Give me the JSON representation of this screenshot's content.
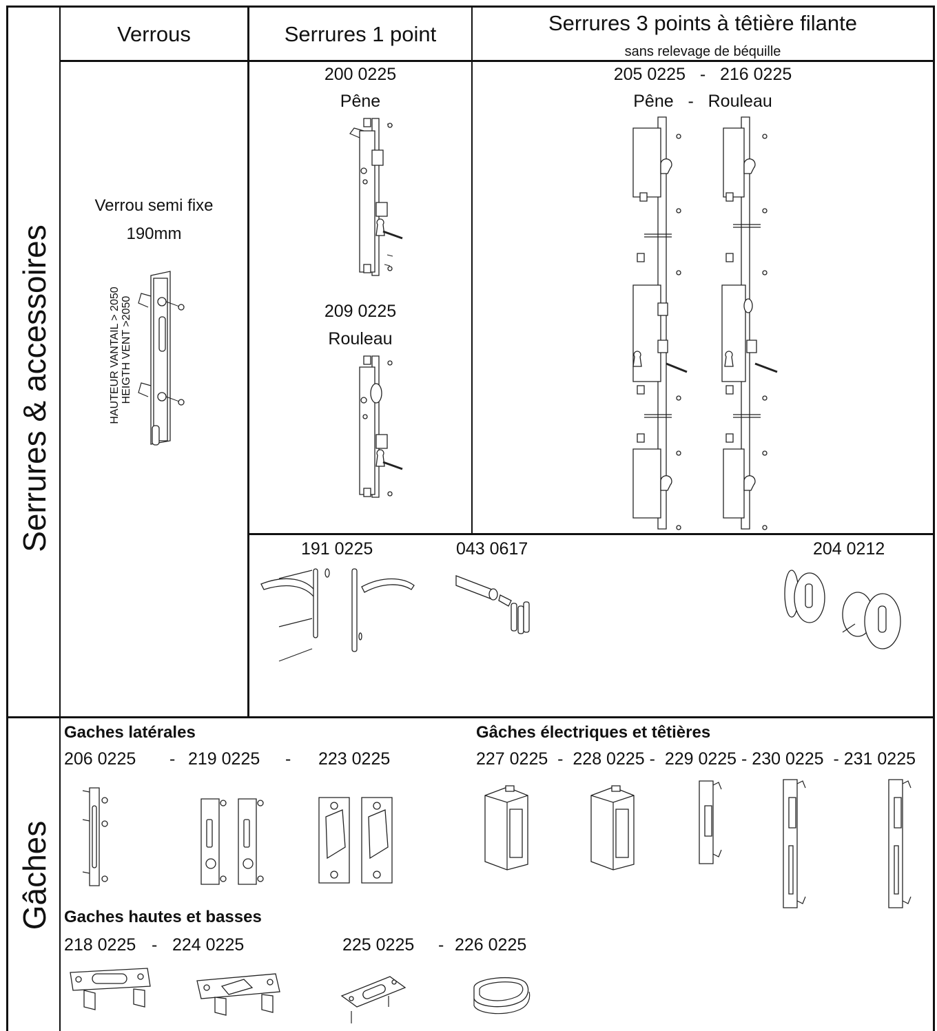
{
  "sections": {
    "serrures": "Serrures & accessoires",
    "gaches": "Gâches"
  },
  "columns": {
    "verrous": "Verrous",
    "serrures_1pt": "Serrures 1 point",
    "serrures_3pt": "Serrures 3 points à têtière filante",
    "serrures_3pt_sub": "sans relevage de béquille"
  },
  "verrou": {
    "label_line1": "Verrou semi fixe",
    "label_line2": "190mm",
    "rot_text1": "HAUTEUR VANTAIL > 2050",
    "rot_text2": "HEIGTH VENT >2050"
  },
  "one_point": {
    "ref1": "200 0225",
    "name1": "Pêne",
    "ref2": "209 0225",
    "name2": "Rouleau"
  },
  "three_point": {
    "refs": "205 0225   -   216 0225",
    "names": "Pêne   -   Rouleau"
  },
  "accessories": {
    "ref_handles": "191 0225",
    "ref_cylinder": "043 0617",
    "ref_rosettes": "204 0212"
  },
  "gaches": {
    "laterales_title": "Gaches latérales",
    "lat_ref1": "206 0225",
    "lat_sep1": "-",
    "lat_ref2": "219 0225",
    "lat_sep2": "-",
    "lat_ref3": "223 0225",
    "electric_title": "Gâches électriques et têtières",
    "electric_refs": "227 0225  -  228 0225 -  229 0225 - 230 0225  - 231 0225",
    "hautes_title": "Gaches hautes et basses",
    "hb_ref1": "218 0225",
    "hb_sep1": "-",
    "hb_ref2": "224 0225",
    "hb_ref3": "225 0225",
    "hb_sep2": "-",
    "hb_ref4": "226 0225"
  }
}
